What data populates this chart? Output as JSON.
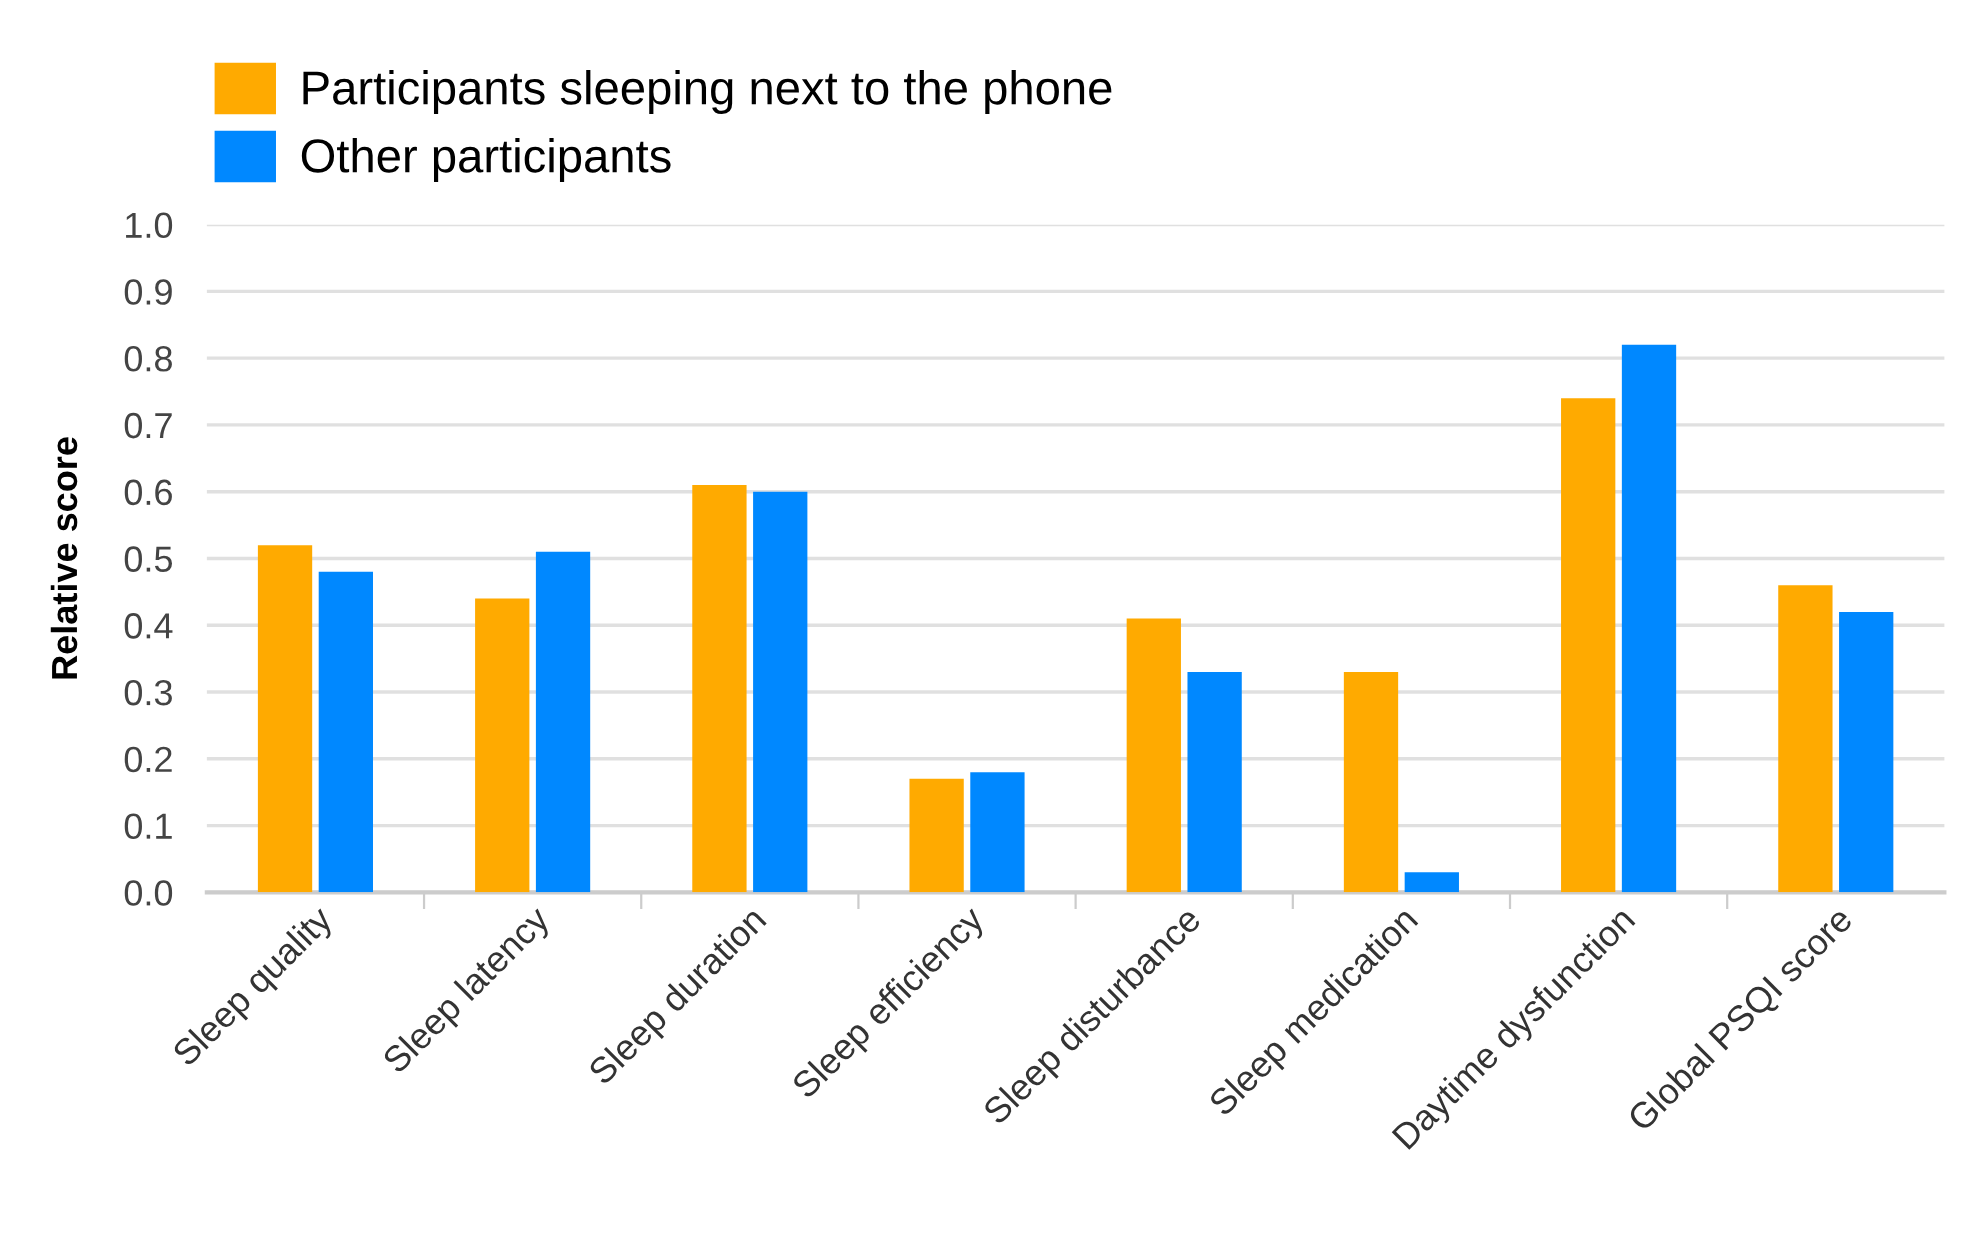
{
  "chart_data": {
    "type": "bar",
    "ylabel": "Relative score",
    "categories": [
      "Sleep quality",
      "Sleep latency",
      "Sleep duration",
      "Sleep efficiency",
      "Sleep disturbance",
      "Sleep medication",
      "Daytime dysfunction",
      "Global PSQI score"
    ],
    "series": [
      {
        "name": "Participants sleeping next to the phone",
        "color": "#ffaa00",
        "values": [
          0.52,
          0.44,
          0.61,
          0.17,
          0.41,
          0.33,
          0.74,
          0.46
        ]
      },
      {
        "name": "Other participants",
        "color": "#0088ff",
        "values": [
          0.48,
          0.51,
          0.6,
          0.18,
          0.33,
          0.03,
          0.82,
          0.42
        ]
      }
    ],
    "ylim": [
      0,
      1.0
    ],
    "yticks": [
      {
        "value": 0,
        "label": "0.0"
      },
      0.1,
      0.2,
      0.3,
      0.4,
      0.5,
      0.6,
      0.7,
      0.8,
      0.9,
      {
        "value": 1,
        "label": "1.0"
      }
    ],
    "grid": "y",
    "legend": "top left"
  }
}
